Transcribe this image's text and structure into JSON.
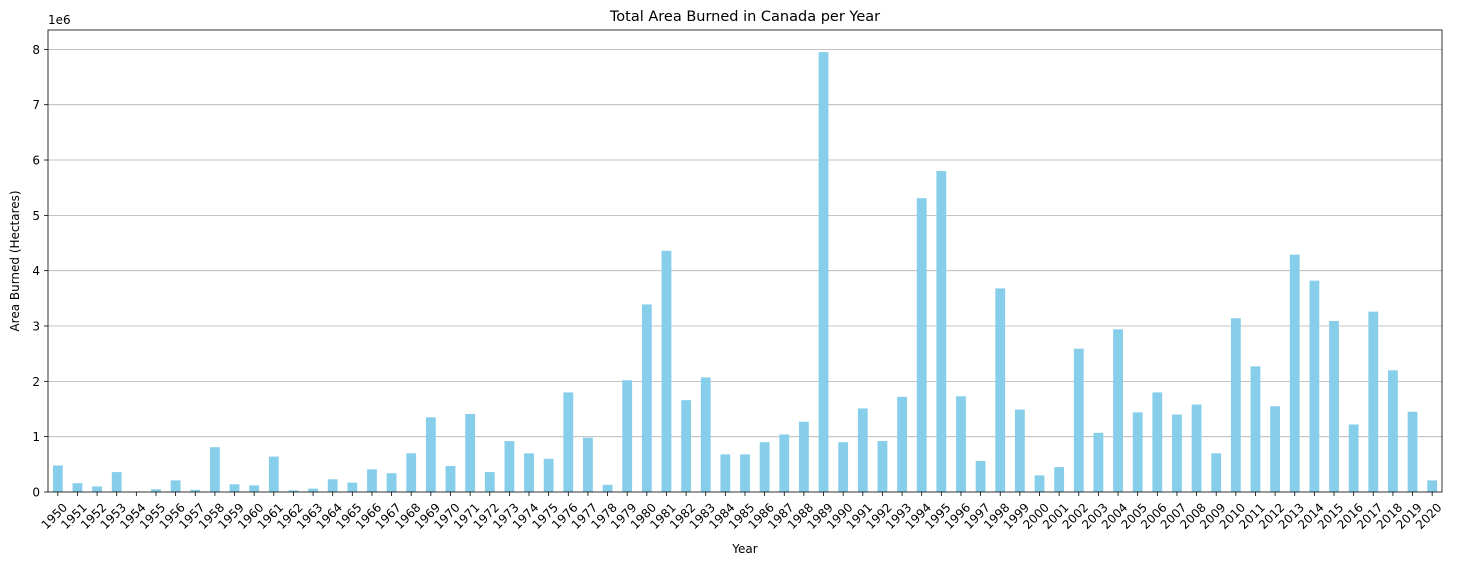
{
  "chart_data": {
    "type": "bar",
    "title": "Total Area Burned in Canada per Year",
    "xlabel": "Year",
    "ylabel": "Area Burned (Hectares)",
    "y_offset_label": "1e6",
    "ylim": [
      0,
      8.35
    ],
    "y_scale": 1000000,
    "y_ticks": [
      0,
      1,
      2,
      3,
      4,
      5,
      6,
      7,
      8
    ],
    "y_tick_labels": [
      "0",
      "1",
      "2",
      "3",
      "4",
      "5",
      "6",
      "7",
      "8"
    ],
    "grid": "y",
    "bar_color": "#87CEEB",
    "categories": [
      "1950",
      "1951",
      "1952",
      "1953",
      "1954",
      "1955",
      "1956",
      "1957",
      "1958",
      "1959",
      "1960",
      "1961",
      "1962",
      "1963",
      "1964",
      "1965",
      "1966",
      "1967",
      "1968",
      "1969",
      "1970",
      "1971",
      "1972",
      "1973",
      "1974",
      "1975",
      "1976",
      "1977",
      "1978",
      "1979",
      "1980",
      "1981",
      "1982",
      "1983",
      "1984",
      "1985",
      "1986",
      "1987",
      "1988",
      "1989",
      "1990",
      "1991",
      "1992",
      "1993",
      "1994",
      "1995",
      "1996",
      "1997",
      "1998",
      "1999",
      "2000",
      "2001",
      "2002",
      "2003",
      "2004",
      "2005",
      "2006",
      "2007",
      "2008",
      "2009",
      "2010",
      "2011",
      "2012",
      "2013",
      "2014",
      "2015",
      "2016",
      "2017",
      "2018",
      "2019",
      "2020"
    ],
    "values": [
      0.48,
      0.16,
      0.1,
      0.36,
      0.01,
      0.05,
      0.21,
      0.04,
      0.81,
      0.14,
      0.12,
      0.64,
      0.03,
      0.06,
      0.23,
      0.17,
      0.41,
      0.34,
      0.7,
      1.35,
      0.47,
      1.41,
      0.36,
      0.92,
      0.7,
      0.6,
      1.8,
      0.98,
      0.13,
      2.02,
      3.39,
      4.36,
      1.66,
      2.07,
      0.68,
      0.68,
      0.9,
      1.04,
      1.27,
      7.95,
      0.9,
      1.51,
      0.92,
      1.72,
      5.31,
      5.8,
      1.73,
      0.56,
      3.68,
      1.49,
      0.3,
      0.45,
      2.59,
      1.07,
      2.94,
      1.44,
      1.8,
      1.4,
      1.58,
      0.7,
      3.14,
      2.27,
      1.55,
      4.29,
      3.82,
      3.09,
      1.22,
      3.26,
      2.2,
      1.45,
      0.21
    ]
  }
}
